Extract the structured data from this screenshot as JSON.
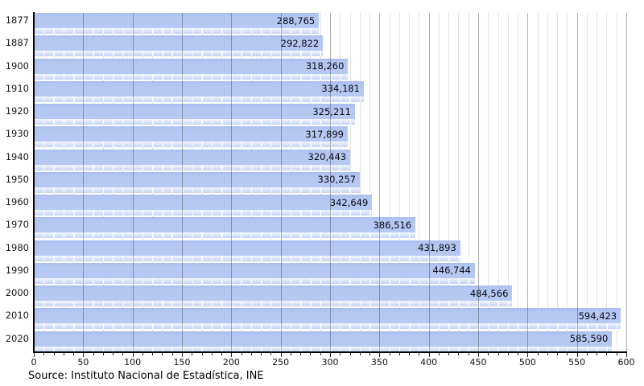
{
  "chart_data": {
    "type": "bar",
    "orientation": "horizontal",
    "title": "",
    "xlabel": "",
    "ylabel": "",
    "categories": [
      "1877",
      "1887",
      "1900",
      "1910",
      "1920",
      "1930",
      "1940",
      "1950",
      "1960",
      "1970",
      "1980",
      "1990",
      "2000",
      "2010",
      "2020"
    ],
    "values": [
      288765,
      292822,
      318260,
      334181,
      325211,
      317899,
      320443,
      330257,
      342649,
      386516,
      431893,
      446744,
      484566,
      594423,
      585590
    ],
    "value_labels": [
      "288,765",
      "292,822",
      "318,260",
      "334,181",
      "325,211",
      "317,899",
      "320,443",
      "330,257",
      "342,649",
      "386,516",
      "431,893",
      "446,744",
      "484,566",
      "594,423",
      "585,590"
    ],
    "value_axis_divisor": 1000,
    "xlim": [
      0,
      600
    ],
    "x_major_step": 50,
    "x_minor_step": 10,
    "x_tick_labels": [
      "0",
      "50",
      "100",
      "150",
      "200",
      "250",
      "300",
      "350",
      "400",
      "450",
      "500",
      "550",
      "600"
    ],
    "grid": "on",
    "legend": "none",
    "source": "Source: Instituto Nacional de Estadística, INE",
    "colors": {
      "bar": "#b4c7f2",
      "bar_gloss": "#dde7fb",
      "grid_minor": "#e3e3e3",
      "grid_major": "#9b9b9b",
      "axis": "#000000",
      "text": "#07070f"
    }
  }
}
